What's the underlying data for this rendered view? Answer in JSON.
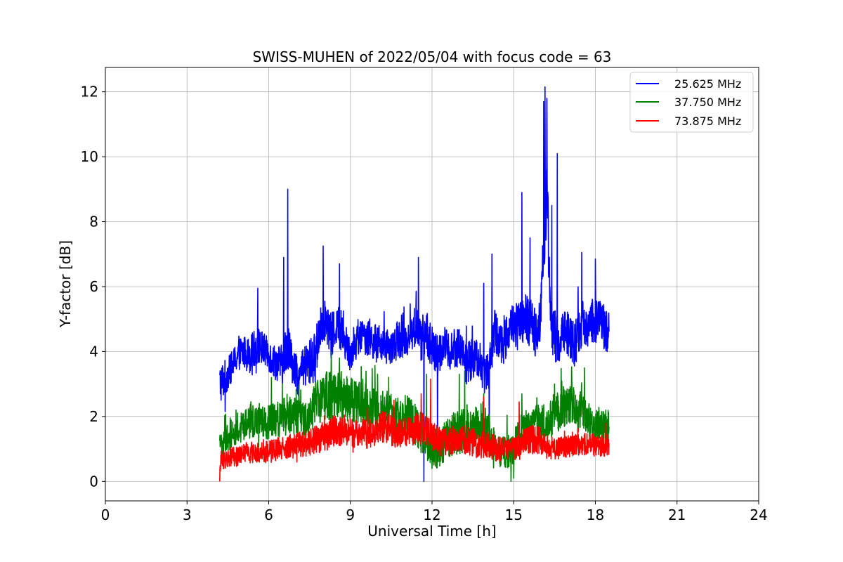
{
  "chart_data": {
    "type": "line",
    "title": "SWISS-MUHEN of 2022/05/04 with focus code = 63",
    "xlabel": "Universal Time [h]",
    "ylabel": "Y-factor [dB]",
    "xlim": [
      0,
      24
    ],
    "ylim": [
      -0.6,
      12.75
    ],
    "xticks": [
      0,
      3,
      6,
      9,
      12,
      15,
      18,
      21,
      24
    ],
    "yticks": [
      0,
      2,
      4,
      6,
      8,
      10,
      12
    ],
    "grid": true,
    "legend_position": "top-right",
    "series": [
      {
        "name": "25.625 MHz",
        "color": "#0000ff",
        "x": [
          4.2,
          4.5,
          4.8,
          5.0,
          5.3,
          5.6,
          5.9,
          6.2,
          6.5,
          6.7,
          6.9,
          7.1,
          7.4,
          7.7,
          7.9,
          8.1,
          8.3,
          8.5,
          8.8,
          9.0,
          9.3,
          9.6,
          9.9,
          10.2,
          10.5,
          10.8,
          11.1,
          11.4,
          11.6,
          11.8,
          12.0,
          12.2,
          12.4,
          12.7,
          13.0,
          13.3,
          13.6,
          13.9,
          14.1,
          14.3,
          14.6,
          14.9,
          15.2,
          15.5,
          15.8,
          16.0,
          16.2,
          16.4,
          16.6,
          16.9,
          17.2,
          17.5,
          17.8,
          18.1,
          18.5
        ],
        "y": [
          3.0,
          3.3,
          3.8,
          4.0,
          3.9,
          4.2,
          4.0,
          3.7,
          3.6,
          4.3,
          3.5,
          3.2,
          3.6,
          3.8,
          4.8,
          5.0,
          4.4,
          4.9,
          4.3,
          4.0,
          4.4,
          4.5,
          4.3,
          4.2,
          4.1,
          4.4,
          4.4,
          4.8,
          4.4,
          4.6,
          4.1,
          3.8,
          4.2,
          4.0,
          4.2,
          3.6,
          3.9,
          3.3,
          3.6,
          4.6,
          4.2,
          4.8,
          4.8,
          5.0,
          4.6,
          5.2,
          9.0,
          4.6,
          4.3,
          4.7,
          4.2,
          4.8,
          4.9,
          5.0,
          4.6
        ],
        "amplitude": [
          0.65,
          0.5,
          0.45,
          0.5,
          0.55,
          0.6,
          0.5,
          0.55,
          0.6,
          0.8,
          0.55,
          0.6,
          0.7,
          0.8,
          0.7,
          0.6,
          0.75,
          0.65,
          0.6,
          0.55,
          0.55,
          0.6,
          0.55,
          0.55,
          0.5,
          0.6,
          0.6,
          0.65,
          0.7,
          0.7,
          0.7,
          0.7,
          0.6,
          0.6,
          0.65,
          0.7,
          0.6,
          0.6,
          0.75,
          0.7,
          0.65,
          0.7,
          0.75,
          0.8,
          0.75,
          0.9,
          1.4,
          0.9,
          0.8,
          0.7,
          0.7,
          0.75,
          0.7,
          0.7,
          0.7
        ],
        "peaks": [
          [
            5.6,
            5.95
          ],
          [
            6.55,
            6.9
          ],
          [
            6.7,
            9.0
          ],
          [
            8.0,
            7.25
          ],
          [
            8.6,
            6.7
          ],
          [
            11.5,
            6.9
          ],
          [
            13.9,
            6.1
          ],
          [
            14.2,
            7.0
          ],
          [
            15.3,
            8.9
          ],
          [
            15.6,
            7.5
          ],
          [
            16.1,
            11.7
          ],
          [
            16.15,
            12.15
          ],
          [
            16.22,
            11.8
          ],
          [
            16.4,
            8.5
          ],
          [
            16.6,
            10.1
          ],
          [
            17.5,
            7.05
          ],
          [
            18.0,
            6.85
          ]
        ],
        "dips": [
          [
            4.4,
            2.15
          ],
          [
            11.7,
            0.0
          ],
          [
            12.2,
            0.9
          ],
          [
            14.1,
            1.0
          ]
        ]
      },
      {
        "name": "37.750 MHz",
        "color": "#008000",
        "x": [
          4.2,
          4.5,
          4.8,
          5.1,
          5.4,
          5.7,
          6.0,
          6.3,
          6.6,
          6.9,
          7.2,
          7.5,
          7.8,
          8.1,
          8.4,
          8.7,
          9.0,
          9.3,
          9.6,
          9.9,
          10.2,
          10.5,
          10.8,
          11.1,
          11.4,
          11.7,
          12.0,
          12.3,
          12.6,
          12.9,
          13.2,
          13.5,
          13.8,
          14.1,
          14.4,
          14.7,
          15.0,
          15.3,
          15.6,
          15.9,
          16.2,
          16.5,
          16.8,
          17.1,
          17.4,
          17.7,
          18.0,
          18.5
        ],
        "y": [
          1.0,
          1.4,
          1.6,
          1.7,
          1.9,
          1.8,
          1.8,
          1.9,
          2.0,
          2.0,
          1.9,
          2.0,
          2.5,
          2.6,
          2.6,
          2.7,
          2.5,
          2.5,
          2.4,
          2.2,
          2.2,
          2.1,
          2.0,
          2.1,
          1.7,
          1.4,
          1.0,
          1.0,
          1.4,
          1.5,
          1.6,
          1.6,
          1.8,
          1.4,
          1.0,
          0.9,
          1.0,
          1.5,
          1.7,
          1.8,
          1.8,
          2.1,
          2.3,
          2.4,
          2.2,
          1.9,
          1.7,
          1.7
        ],
        "amplitude": [
          0.45,
          0.5,
          0.5,
          0.5,
          0.55,
          0.5,
          0.55,
          0.55,
          0.6,
          0.6,
          0.55,
          0.6,
          0.75,
          0.8,
          0.8,
          0.8,
          0.7,
          0.7,
          0.7,
          0.65,
          0.6,
          0.6,
          0.6,
          0.6,
          0.7,
          0.7,
          0.6,
          0.6,
          0.65,
          0.7,
          0.7,
          0.7,
          0.75,
          0.7,
          0.55,
          0.5,
          0.55,
          0.6,
          0.6,
          0.6,
          0.6,
          0.65,
          0.65,
          0.65,
          0.6,
          0.55,
          0.5,
          0.5
        ],
        "peaks": [
          [
            4.8,
            2.2
          ],
          [
            6.1,
            3.2
          ],
          [
            6.5,
            3.0
          ],
          [
            8.3,
            4.0
          ],
          [
            8.6,
            3.8
          ],
          [
            10.0,
            3.3
          ],
          [
            11.8,
            3.3
          ],
          [
            13.0,
            3.3
          ],
          [
            13.2,
            3.4
          ],
          [
            13.9,
            2.7
          ],
          [
            15.3,
            2.7
          ],
          [
            16.5,
            3.0
          ],
          [
            17.6,
            3.5
          ]
        ],
        "dips": [
          [
            12.0,
            0.4
          ],
          [
            14.9,
            0.0
          ],
          [
            15.0,
            0.1
          ]
        ]
      },
      {
        "name": "73.875 MHz",
        "color": "#ff0000",
        "x": [
          4.2,
          4.5,
          4.8,
          5.1,
          5.4,
          5.7,
          6.0,
          6.3,
          6.6,
          6.9,
          7.2,
          7.5,
          7.8,
          8.1,
          8.4,
          8.7,
          9.0,
          9.3,
          9.6,
          9.9,
          10.2,
          10.5,
          10.8,
          11.1,
          11.4,
          11.7,
          12.0,
          12.3,
          12.6,
          12.9,
          13.2,
          13.5,
          13.8,
          14.1,
          14.4,
          14.7,
          15.0,
          15.3,
          15.6,
          15.9,
          16.2,
          16.5,
          16.8,
          17.1,
          17.4,
          17.7,
          18.0,
          18.5
        ],
        "y": [
          0.6,
          0.75,
          0.75,
          0.85,
          0.85,
          0.9,
          0.9,
          1.0,
          1.05,
          1.1,
          1.15,
          1.2,
          1.3,
          1.4,
          1.55,
          1.6,
          1.5,
          1.4,
          1.45,
          1.55,
          1.7,
          1.6,
          1.45,
          1.55,
          1.6,
          1.7,
          1.4,
          1.2,
          1.2,
          1.3,
          1.3,
          1.2,
          1.15,
          1.1,
          1.0,
          1.0,
          1.0,
          1.15,
          1.3,
          1.3,
          1.1,
          1.0,
          1.05,
          1.1,
          1.15,
          1.15,
          1.1,
          1.1
        ],
        "amplitude": [
          0.3,
          0.3,
          0.3,
          0.3,
          0.3,
          0.3,
          0.35,
          0.35,
          0.35,
          0.4,
          0.4,
          0.4,
          0.45,
          0.5,
          0.5,
          0.5,
          0.45,
          0.45,
          0.45,
          0.45,
          0.5,
          0.5,
          0.45,
          0.45,
          0.5,
          0.55,
          0.45,
          0.45,
          0.45,
          0.45,
          0.45,
          0.45,
          0.45,
          0.4,
          0.4,
          0.35,
          0.35,
          0.4,
          0.45,
          0.45,
          0.4,
          0.35,
          0.35,
          0.35,
          0.35,
          0.35,
          0.35,
          0.35
        ],
        "peaks": [
          [
            10.6,
            2.5
          ],
          [
            11.6,
            2.7
          ],
          [
            11.95,
            3.15
          ],
          [
            13.9,
            2.6
          ],
          [
            15.2,
            2.45
          ]
        ],
        "dips": [
          [
            4.2,
            0.0
          ]
        ]
      }
    ]
  }
}
